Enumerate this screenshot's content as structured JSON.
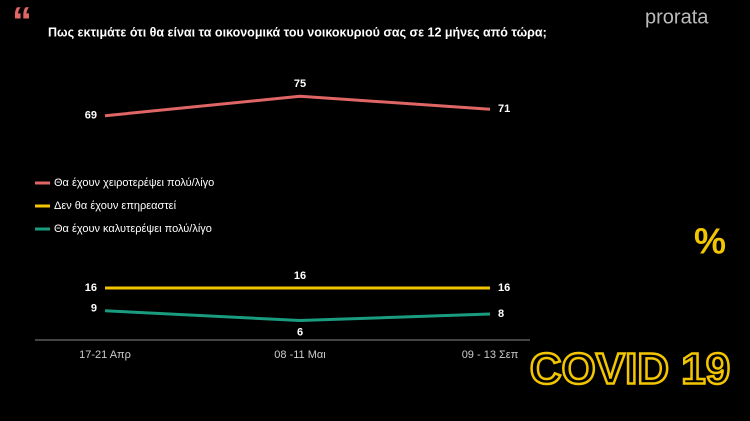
{
  "chart_data": {
    "type": "line",
    "title": "Πως εκτιμάτε ότι θα είναι τα οικονομικά του νοικοκυριού σας σε 12 μήνες από τώρα;",
    "brand": "prorata",
    "unit_badge": "%",
    "quote_mark": "“",
    "covid_badge": "COVID 19",
    "categories": [
      "17-21 Απρ",
      "08 -11 Μαι",
      "09 - 13 Σεπ"
    ],
    "series": [
      {
        "name": "Θα έχουν χειροτερέψει πολύ/λίγο",
        "color": "#e06666",
        "values": [
          69,
          75,
          71
        ]
      },
      {
        "name": "Δεν θα έχουν επηρεαστεί",
        "color": "#f2c500",
        "values": [
          16,
          16,
          16
        ]
      },
      {
        "name": "Θα έχουν καλυτερέψει πολύ/λίγο",
        "color": "#1a9c80",
        "values": [
          9,
          6,
          8
        ]
      }
    ],
    "ylim": [
      0,
      80
    ],
    "legend": "left"
  }
}
